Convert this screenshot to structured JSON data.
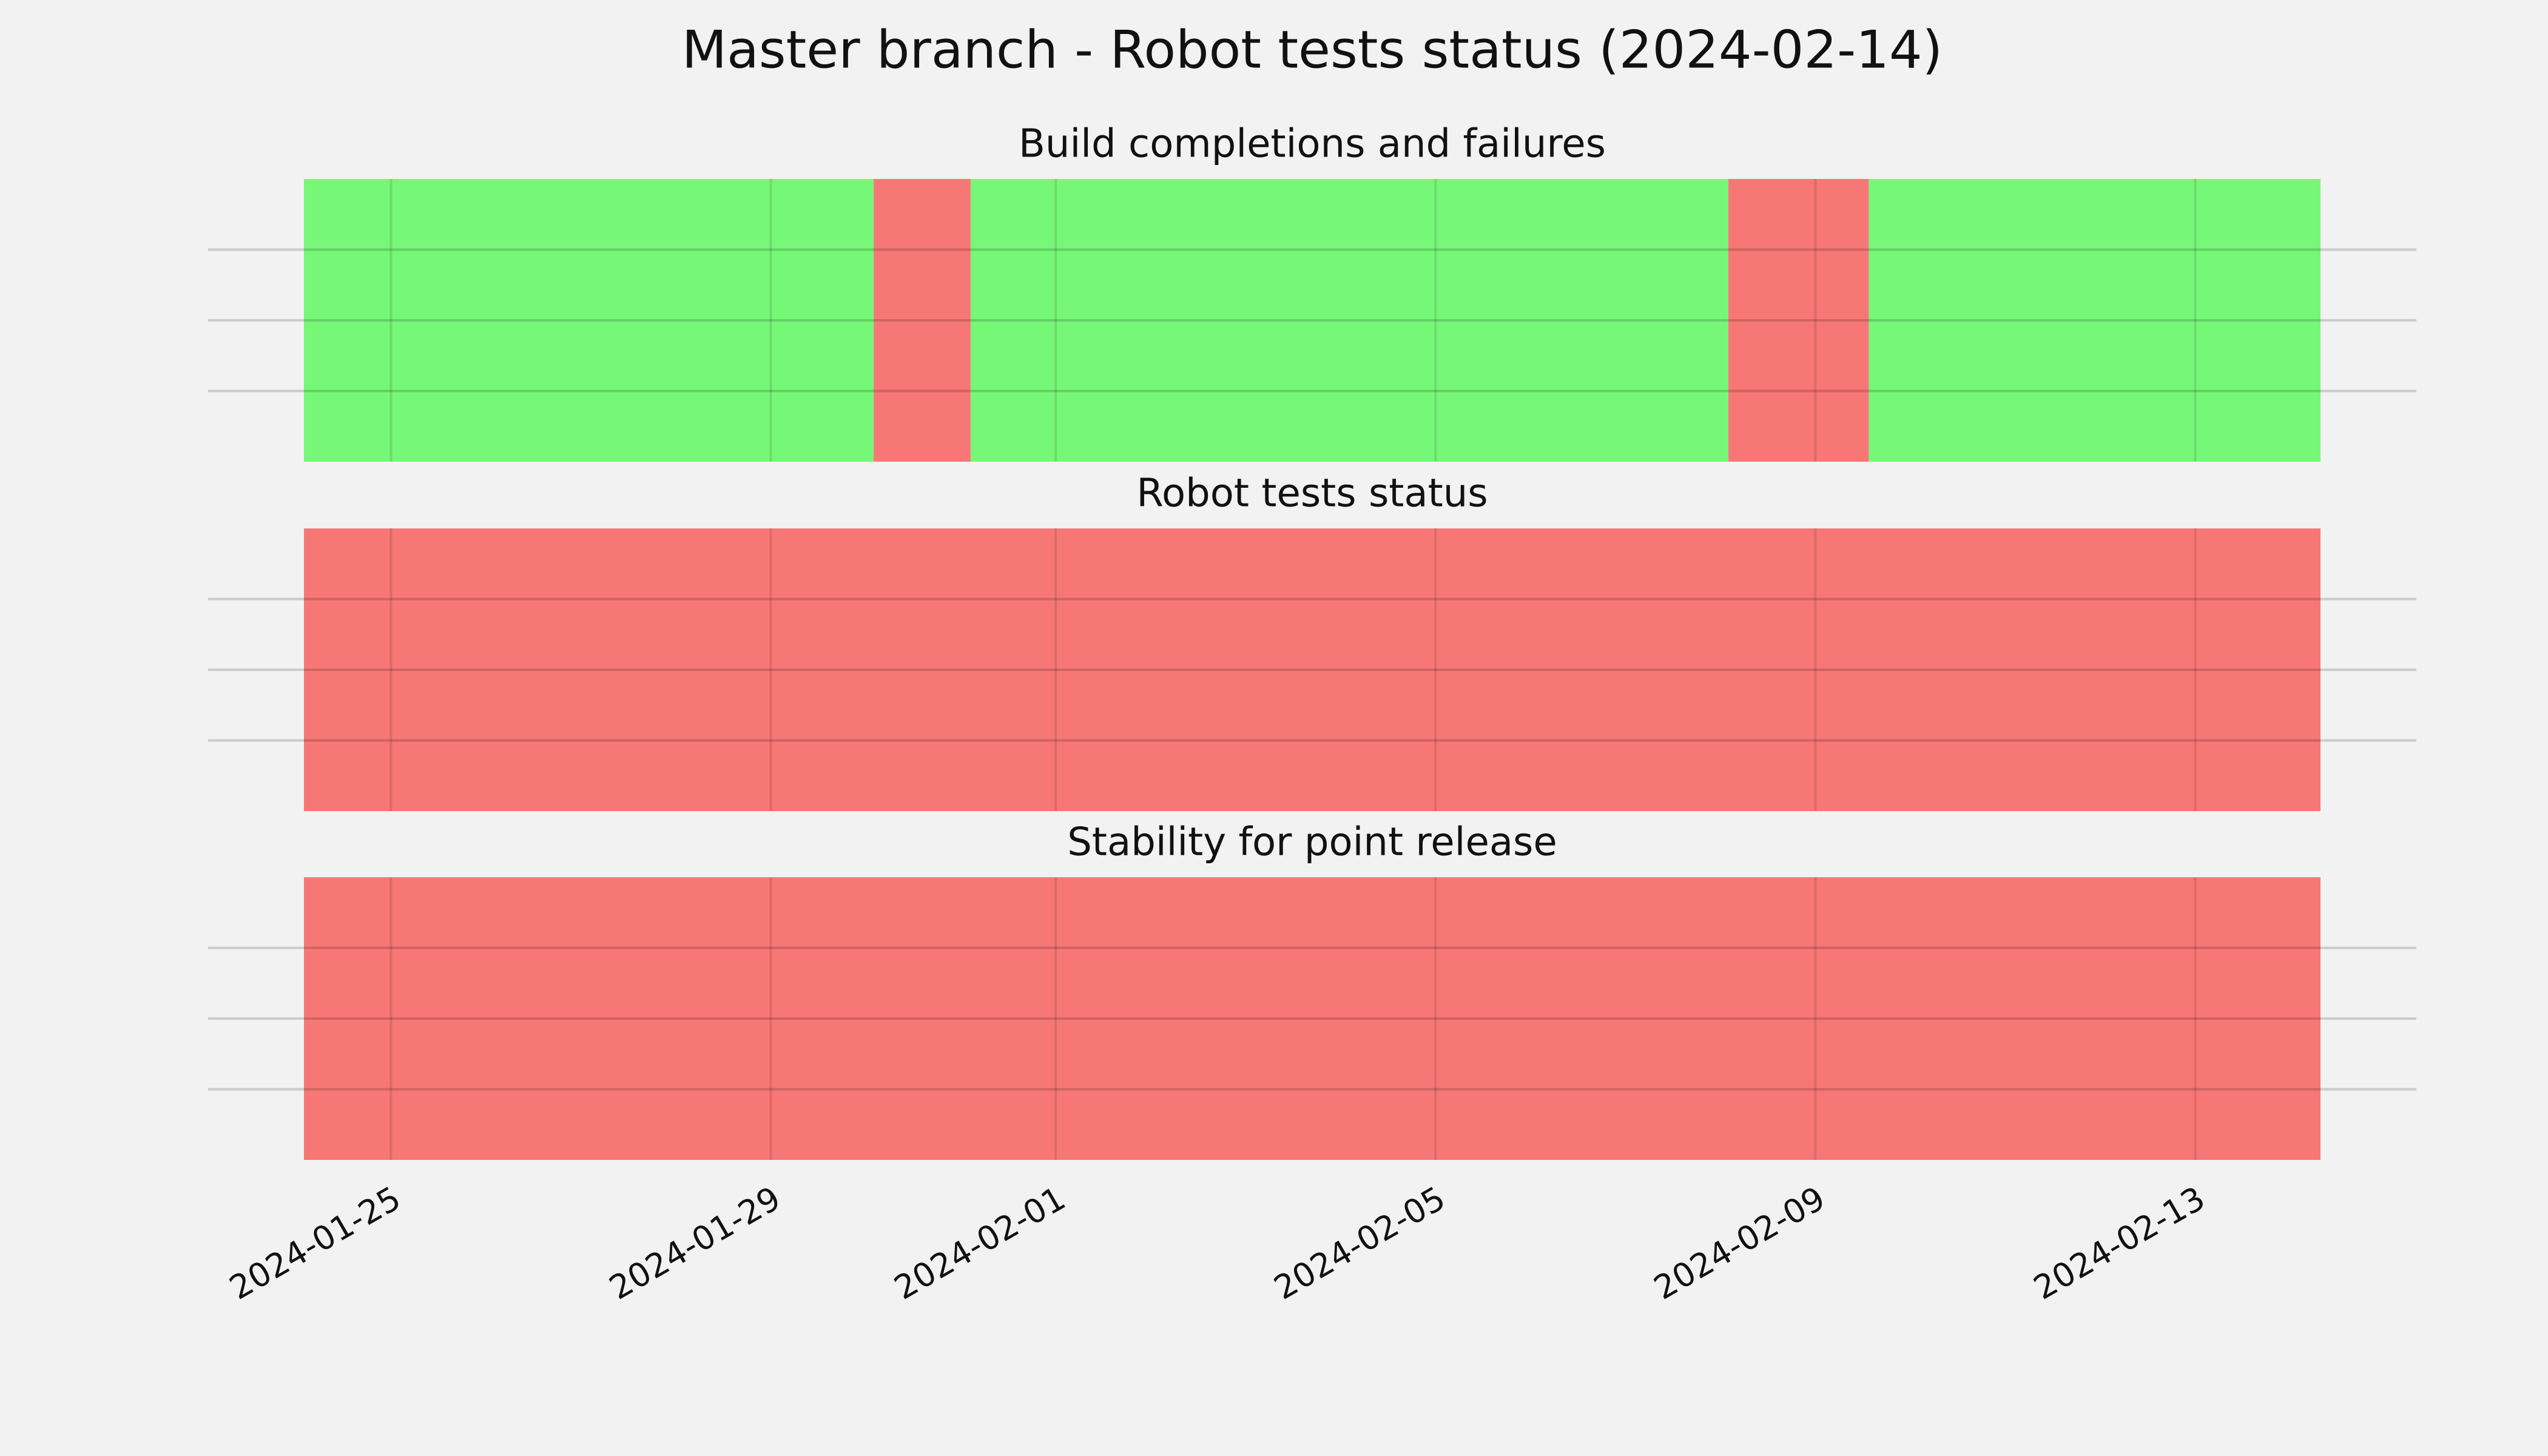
{
  "title": "Master branch - Robot tests status (2024-02-14)",
  "chart_data": [
    {
      "type": "timeline",
      "title": "Build completions and failures",
      "segments": [
        {
          "start": "2024-01-24T02:00Z",
          "end": "2024-01-30T02:00Z",
          "color": "#77f777"
        },
        {
          "start": "2024-01-30T02:00Z",
          "end": "2024-01-31T02:30Z",
          "color": "#f77777"
        },
        {
          "start": "2024-01-31T02:30Z",
          "end": "2024-02-08T02:00Z",
          "color": "#77f777"
        },
        {
          "start": "2024-02-08T02:00Z",
          "end": "2024-02-09T13:30Z",
          "color": "#f77777"
        },
        {
          "start": "2024-02-09T13:30Z",
          "end": "2024-02-14T07:40Z",
          "color": "#77f777"
        }
      ],
      "xlim": [
        "2024-01-24T02:00Z",
        "2024-02-14T07:40Z"
      ],
      "xticks": [
        "2024-01-25",
        "2024-01-29",
        "2024-02-01",
        "2024-02-05",
        "2024-02-09",
        "2024-02-13"
      ],
      "ylim": [
        0,
        1
      ],
      "yticks": [
        0.25,
        0.5,
        0.75
      ],
      "grid": true
    },
    {
      "type": "timeline",
      "title": "Robot tests status",
      "segments": [
        {
          "start": "2024-01-24T02:00Z",
          "end": "2024-02-14T07:40Z",
          "color": "#f77777"
        }
      ],
      "xlim": [
        "2024-01-24T02:00Z",
        "2024-02-14T07:40Z"
      ],
      "xticks": [
        "2024-01-25",
        "2024-01-29",
        "2024-02-01",
        "2024-02-05",
        "2024-02-09",
        "2024-02-13"
      ],
      "ylim": [
        0,
        1
      ],
      "yticks": [
        0.25,
        0.5,
        0.75
      ],
      "grid": true
    },
    {
      "type": "timeline",
      "title": "Stability for point release",
      "segments": [
        {
          "start": "2024-01-24T02:00Z",
          "end": "2024-02-14T07:40Z",
          "color": "#f77777"
        }
      ],
      "xlim": [
        "2024-01-24T02:00Z",
        "2024-02-14T07:40Z"
      ],
      "xticks": [
        "2024-01-25",
        "2024-01-29",
        "2024-02-01",
        "2024-02-05",
        "2024-02-09",
        "2024-02-13"
      ],
      "ylim": [
        0,
        1
      ],
      "yticks": [
        0.25,
        0.5,
        0.75
      ],
      "grid": true,
      "tick_labels": true
    }
  ]
}
